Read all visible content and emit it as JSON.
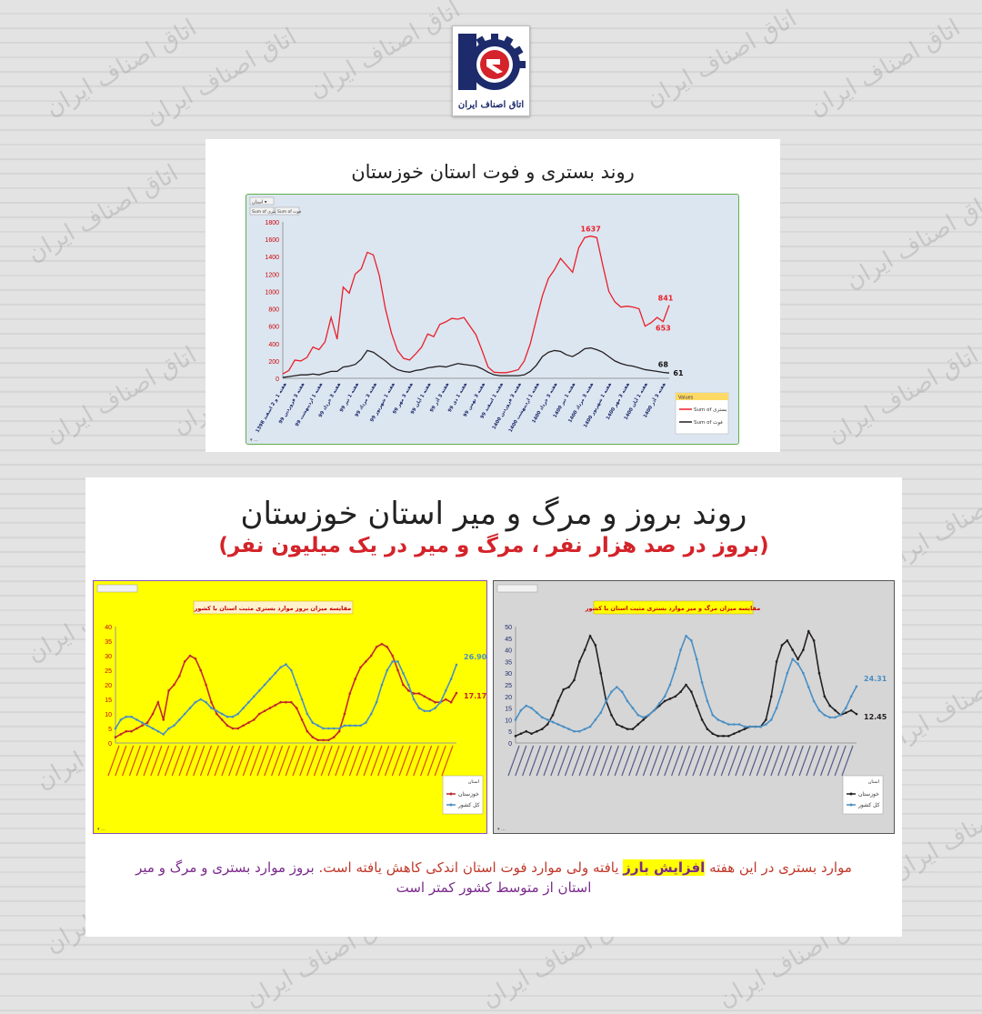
{
  "watermark_text": "اتاق اصناف ایران",
  "logo": {
    "text": "اتاق اصناف ایران",
    "colors": {
      "blue": "#1d2a6b",
      "red": "#d4232a"
    }
  },
  "top_panel": {
    "title": "روند بستری و فوت استان خوزستان",
    "filter_label": "استان",
    "field_buttons": [
      "Sum of بستری",
      "Sum of فوت"
    ],
    "legend_title": "Values",
    "colors": {
      "frame": "#5fae4b",
      "plot_bg": "#dce6f1",
      "hosp": "#e8202a",
      "death": "#231f20"
    }
  },
  "bottom_panel": {
    "title": "روند بروز و مرگ و میر استان خوزستان",
    "subtitle": "(بروز در صد هزار نفر ، مرگ و میر در یک میلیون نفر)",
    "left_chart_title": "مقایسه میزان بروز موارد بستری مثبت استان با کشور",
    "right_chart_title": "مقایسه میزان مرگ و میر موارد بستری مثبت استان با کشور",
    "legend_header": "استان",
    "series_names": [
      "خوزستان",
      "کل کشور"
    ],
    "colors": {
      "left_bg": "#ffff00",
      "right_bg": "#d6d6d6",
      "left_frame": "#8a4fbf",
      "province_left": "#c1272d",
      "country": "#4a8fc4",
      "province_right": "#231f20"
    }
  },
  "note": {
    "part1": "موارد بستری در این هفته ",
    "highlight": "افزایش بارز",
    "part2": " یافته ولی موارد فوت استان اندکی کاهش یافته است. ",
    "part3": "بروز موارد بستری و مرگ و میر استان از متوسط کشور کمتر است"
  },
  "chart_data": [
    {
      "type": "line",
      "title": "روند بستری و فوت استان خوزستان",
      "y_ticks": [
        "0",
        "200",
        "400",
        "600",
        "800",
        "1000",
        "1200",
        "1400",
        "1600",
        "1800"
      ],
      "ylim": [
        0,
        1800
      ],
      "x_tick_labels": [
        "هفته 1 و 2 اسفند 1398",
        "هفته 3 فروردین 99",
        "هفته 1 اردیبهشت 99",
        "هفته 3 خرداد 99",
        "هفته 1 تیر 99",
        "هفته 3 مرداد 99",
        "هفته 1 شهریور 99",
        "هفته 3 مهر 99",
        "هفته 1 آبان 99",
        "هفته 3 آذر 99",
        "هفته 1 دی 99",
        "هفته 3 بهمن 99",
        "هفته 1 اسفند 99",
        "هفته 3 فروردین 1400",
        "هفته 1 اردیبهشت 1400",
        "هفته 3 خرداد 1400",
        "هفته 1 تیر 1400",
        "هفته 3 مرداد 1400",
        "هفته 1 شهریور 1400",
        "هفته 3 مهر 1400",
        "هفته 1 آبان 1400",
        "هفته 3 آذر 1400"
      ],
      "series": [
        {
          "name": "Sum of بستری",
          "values": [
            50,
            90,
            210,
            200,
            240,
            360,
            330,
            420,
            700,
            450,
            1050,
            980,
            1200,
            1260,
            1450,
            1420,
            1180,
            800,
            520,
            320,
            230,
            210,
            280,
            360,
            510,
            480,
            620,
            650,
            690,
            680,
            700,
            600,
            500,
            320,
            130,
            70,
            65,
            65,
            80,
            100,
            200,
            400,
            680,
            950,
            1150,
            1250,
            1380,
            1300,
            1220,
            1500,
            1620,
            1637,
            1620,
            1300,
            1000,
            880,
            820,
            830,
            820,
            800,
            600,
            640,
            700,
            653,
            841
          ]
        },
        {
          "name": "Sum of فوت",
          "values": [
            10,
            20,
            30,
            40,
            40,
            50,
            40,
            60,
            80,
            80,
            130,
            140,
            160,
            220,
            320,
            300,
            250,
            200,
            140,
            100,
            80,
            70,
            90,
            100,
            120,
            130,
            140,
            130,
            150,
            170,
            160,
            150,
            140,
            110,
            70,
            40,
            30,
            30,
            30,
            30,
            40,
            80,
            150,
            250,
            300,
            320,
            310,
            270,
            250,
            290,
            340,
            350,
            330,
            300,
            250,
            200,
            170,
            150,
            140,
            120,
            100,
            90,
            80,
            68,
            61
          ]
        }
      ],
      "data_labels": [
        "1637",
        "841",
        "653",
        "68",
        "61"
      ]
    },
    {
      "type": "line",
      "title": "مقایسه میزان بروز موارد بستری مثبت استان با کشور",
      "y_ticks": [
        "0",
        "5",
        "10",
        "15",
        "20",
        "25",
        "30",
        "35",
        "40"
      ],
      "ylim": [
        0,
        40
      ],
      "series": [
        {
          "name": "خوزستان",
          "values": [
            2,
            3,
            4,
            4,
            5,
            6,
            7,
            10,
            14,
            8,
            18,
            20,
            23,
            28,
            30,
            29,
            25,
            20,
            14,
            10,
            8,
            6,
            5,
            5,
            6,
            7,
            8,
            10,
            11,
            12,
            13,
            14,
            14,
            14,
            12,
            8,
            4,
            2,
            1,
            1,
            1,
            2,
            4,
            10,
            17,
            22,
            26,
            28,
            30,
            33,
            34,
            33,
            30,
            25,
            20,
            18,
            17,
            17,
            16,
            15,
            14,
            14,
            15,
            14,
            17.17
          ]
        },
        {
          "name": "کل کشور",
          "values": [
            5,
            8,
            9,
            9,
            8,
            7,
            6,
            5,
            4,
            3,
            5,
            6,
            8,
            10,
            12,
            14,
            15,
            14,
            12,
            11,
            10,
            9,
            9,
            10,
            12,
            14,
            16,
            18,
            20,
            22,
            24,
            26,
            27,
            25,
            20,
            15,
            10,
            7,
            6,
            5,
            5,
            5,
            5,
            6,
            6,
            6,
            6,
            7,
            10,
            14,
            20,
            25,
            28,
            28,
            24,
            20,
            15,
            12,
            11,
            11,
            12,
            14,
            18,
            22,
            26.9
          ]
        }
      ],
      "data_labels": [
        "26.90",
        "17.17"
      ]
    },
    {
      "type": "line",
      "title": "مقایسه میزان مرگ و میر موارد بستری مثبت استان با کشور",
      "y_ticks": [
        "0",
        "5",
        "10",
        "15",
        "20",
        "25",
        "30",
        "35",
        "40",
        "45",
        "50"
      ],
      "ylim": [
        0,
        50
      ],
      "series": [
        {
          "name": "خوزستان",
          "values": [
            3,
            4,
            5,
            4,
            5,
            6,
            8,
            12,
            18,
            23,
            24,
            27,
            35,
            40,
            46,
            42,
            30,
            18,
            12,
            8,
            7,
            6,
            6,
            8,
            10,
            12,
            14,
            16,
            18,
            19,
            20,
            22,
            25,
            22,
            16,
            10,
            6,
            4,
            3,
            3,
            3,
            4,
            5,
            6,
            7,
            7,
            7,
            10,
            20,
            35,
            42,
            44,
            40,
            36,
            40,
            48,
            44,
            30,
            20,
            16,
            14,
            12,
            13,
            14,
            12.45
          ]
        },
        {
          "name": "کل کشور",
          "values": [
            10,
            14,
            16,
            15,
            13,
            11,
            10,
            9,
            8,
            7,
            6,
            5,
            5,
            6,
            7,
            10,
            13,
            18,
            22,
            24,
            22,
            18,
            15,
            12,
            11,
            12,
            14,
            17,
            20,
            25,
            32,
            40,
            46,
            44,
            36,
            26,
            18,
            12,
            10,
            9,
            8,
            8,
            8,
            7,
            7,
            7,
            7,
            8,
            10,
            15,
            22,
            30,
            36,
            34,
            30,
            24,
            18,
            14,
            12,
            11,
            11,
            12,
            15,
            20,
            24.31
          ]
        }
      ],
      "data_labels": [
        "24.31",
        "12.45"
      ]
    }
  ]
}
